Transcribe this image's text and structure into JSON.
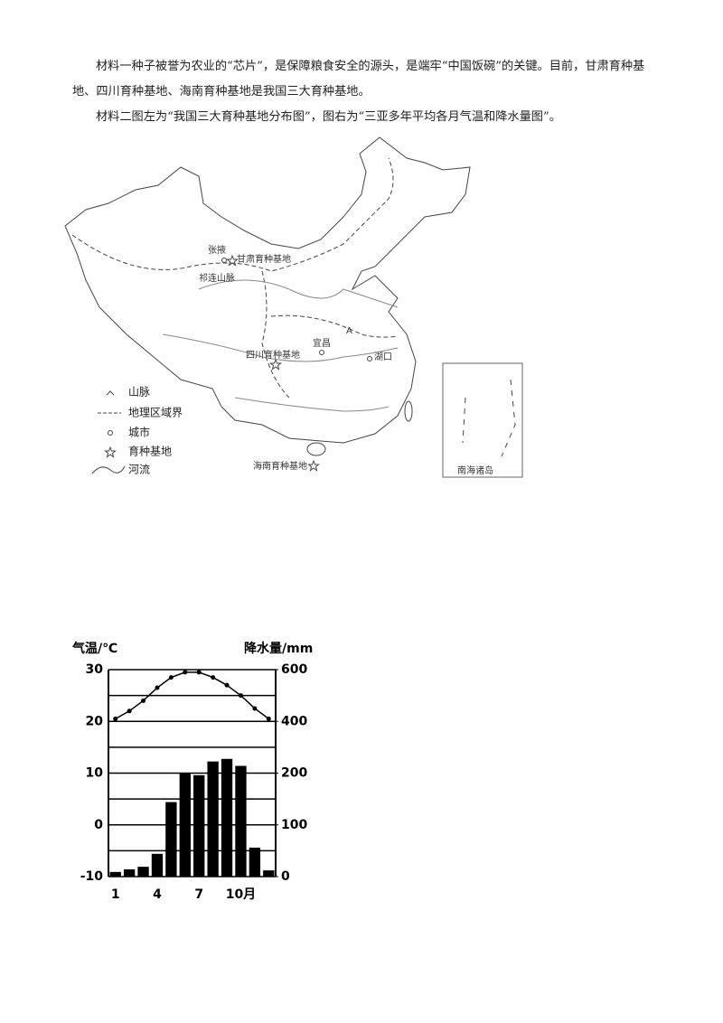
{
  "material_1": "材料一种子被誉为农业的“芯片”，是保障粮食安全的源头，是端牢“中国饭碗”的关键。目前，甘肃育种基地、四川育种基地、海南育种基地是我国三大育种基地。",
  "material_2": "材料二图左为“我国三大育种基地分布图”，图右为“三亚多年平均各月气温和降水量图”。",
  "map": {
    "labels": [
      "张掖",
      "甘肃育种基地",
      "祁连山脉",
      "A",
      "宜昌",
      "四川育种基地",
      "湖口",
      "海南育种基地",
      "南海诸岛"
    ],
    "legend": [
      "山脉",
      "地理区域界",
      "城市",
      "育种基地",
      "河流"
    ]
  },
  "chart_data": {
    "type": "combo",
    "y_label": "气温/℃",
    "y2_label": "降水量/mm",
    "categories": [
      "1",
      null,
      null,
      "4",
      null,
      null,
      "7",
      null,
      null,
      "10月",
      null,
      null
    ],
    "series": [
      {
        "type": "line",
        "color": "#000000",
        "values": [
          20.5,
          22,
          24,
          26.5,
          28.5,
          29.5,
          29.5,
          28.5,
          27,
          25,
          22.5,
          20.5
        ]
      },
      {
        "type": "bar",
        "axis": "y2",
        "color": "#000000",
        "values": [
          9,
          14,
          19,
          44,
          144,
          200,
          196,
          245,
          255,
          228,
          56,
          12
        ]
      }
    ],
    "ylim": [
      -10,
      30
    ],
    "yticks": [
      -10,
      0,
      10,
      20,
      30
    ],
    "minor_yticks": [
      -5,
      5,
      15,
      25
    ],
    "y2lim": [
      0,
      600
    ],
    "y2ticks": [
      0,
      100,
      200,
      400,
      600
    ],
    "grid": true
  }
}
